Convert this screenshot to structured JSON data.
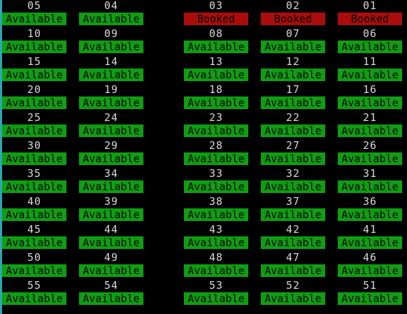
{
  "theme": {
    "background": "#000000",
    "number_text": "#d8d8d8",
    "available_bg": "#0e9f10",
    "available_text": "#000000",
    "booked_bg": "#ab0d0d",
    "booked_text": "#000000",
    "cursor_bar": "#2aa7b0"
  },
  "seat_rows": [
    [
      {
        "number": "05",
        "status": "Available"
      },
      {
        "number": "04",
        "status": "Available"
      },
      {
        "number": "03",
        "status": "Booked"
      },
      {
        "number": "02",
        "status": "Booked"
      },
      {
        "number": "01",
        "status": "Booked"
      }
    ],
    [
      {
        "number": "10",
        "status": "Available"
      },
      {
        "number": "09",
        "status": "Available"
      },
      {
        "number": "08",
        "status": "Available"
      },
      {
        "number": "07",
        "status": "Available"
      },
      {
        "number": "06",
        "status": "Available"
      }
    ],
    [
      {
        "number": "15",
        "status": "Available"
      },
      {
        "number": "14",
        "status": "Available"
      },
      {
        "number": "13",
        "status": "Available"
      },
      {
        "number": "12",
        "status": "Available"
      },
      {
        "number": "11",
        "status": "Available"
      }
    ],
    [
      {
        "number": "20",
        "status": "Available"
      },
      {
        "number": "19",
        "status": "Available"
      },
      {
        "number": "18",
        "status": "Available"
      },
      {
        "number": "17",
        "status": "Available"
      },
      {
        "number": "16",
        "status": "Available"
      }
    ],
    [
      {
        "number": "25",
        "status": "Available"
      },
      {
        "number": "24",
        "status": "Available"
      },
      {
        "number": "23",
        "status": "Available"
      },
      {
        "number": "22",
        "status": "Available"
      },
      {
        "number": "21",
        "status": "Available"
      }
    ],
    [
      {
        "number": "30",
        "status": "Available"
      },
      {
        "number": "29",
        "status": "Available"
      },
      {
        "number": "28",
        "status": "Available"
      },
      {
        "number": "27",
        "status": "Available"
      },
      {
        "number": "26",
        "status": "Available"
      }
    ],
    [
      {
        "number": "35",
        "status": "Available"
      },
      {
        "number": "34",
        "status": "Available"
      },
      {
        "number": "33",
        "status": "Available"
      },
      {
        "number": "32",
        "status": "Available"
      },
      {
        "number": "31",
        "status": "Available"
      }
    ],
    [
      {
        "number": "40",
        "status": "Available"
      },
      {
        "number": "39",
        "status": "Available"
      },
      {
        "number": "38",
        "status": "Available"
      },
      {
        "number": "37",
        "status": "Available"
      },
      {
        "number": "36",
        "status": "Available"
      }
    ],
    [
      {
        "number": "45",
        "status": "Available"
      },
      {
        "number": "44",
        "status": "Available"
      },
      {
        "number": "43",
        "status": "Available"
      },
      {
        "number": "42",
        "status": "Available"
      },
      {
        "number": "41",
        "status": "Available"
      }
    ],
    [
      {
        "number": "50",
        "status": "Available"
      },
      {
        "number": "49",
        "status": "Available"
      },
      {
        "number": "48",
        "status": "Available"
      },
      {
        "number": "47",
        "status": "Available"
      },
      {
        "number": "46",
        "status": "Available"
      }
    ],
    [
      {
        "number": "55",
        "status": "Available"
      },
      {
        "number": "54",
        "status": "Available"
      },
      {
        "number": "53",
        "status": "Available"
      },
      {
        "number": "52",
        "status": "Available"
      },
      {
        "number": "51",
        "status": "Available"
      }
    ]
  ]
}
